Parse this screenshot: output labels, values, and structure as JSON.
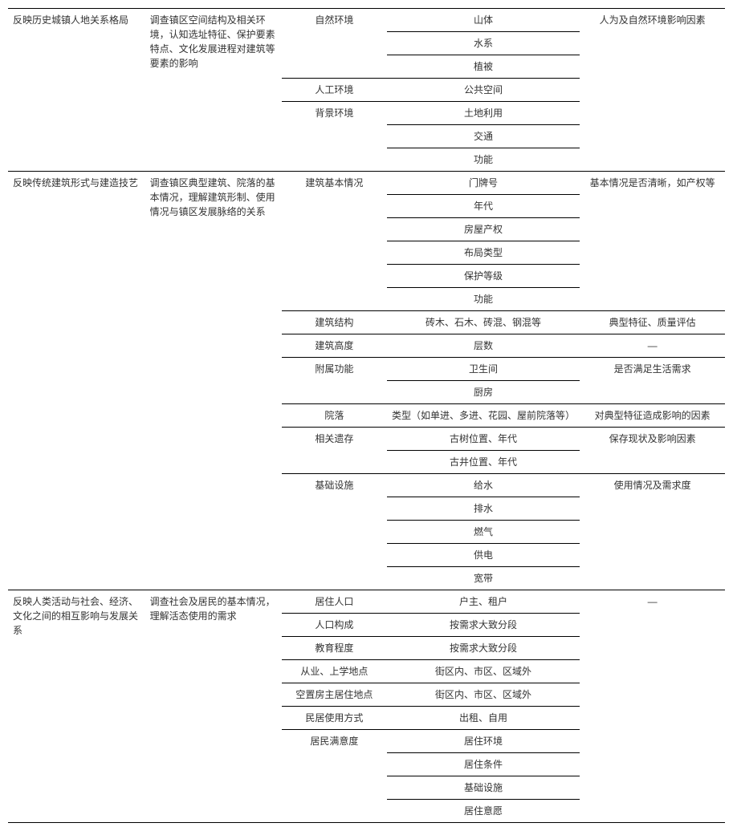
{
  "sections": [
    {
      "col1": "反映历史城镇人地关系格局",
      "col2": "调查镇区空间结构及相关环境，认知选址特征、保护要素特点、文化发展进程对建筑等要素的影响",
      "groups": [
        {
          "cat": "自然环境",
          "items": [
            "山体",
            "水系",
            "植被"
          ],
          "note": null
        },
        {
          "cat": "人工环境",
          "items": [
            "公共空间"
          ],
          "note": null
        },
        {
          "cat": "背景环境",
          "items": [
            "土地利用",
            "交通",
            "功能"
          ],
          "note": null
        }
      ],
      "sectionNote": "人为及自然环境影响因素"
    },
    {
      "col1": "反映传统建筑形式与建造技艺",
      "col2": "调查镇区典型建筑、院落的基本情况，理解建筑形制、使用情况与镇区发展脉络的关系",
      "groups": [
        {
          "cat": "建筑基本情况",
          "items": [
            "门牌号",
            "年代",
            "房屋产权",
            "布局类型",
            "保护等级",
            "功能"
          ],
          "note": "基本情况是否清晰，如产权等"
        },
        {
          "cat": "建筑结构",
          "items": [
            "砖木、石木、砖混、钢混等"
          ],
          "note": "典型特征、质量评估"
        },
        {
          "cat": "建筑高度",
          "items": [
            "层数"
          ],
          "note": "—"
        },
        {
          "cat": "附属功能",
          "items": [
            "卫生间",
            "厨房"
          ],
          "note": "是否满足生活需求"
        },
        {
          "cat": "院落",
          "items": [
            "类型（如单进、多进、花园、屋前院落等）"
          ],
          "note": "对典型特征造成影响的因素"
        },
        {
          "cat": "相关遗存",
          "items": [
            "古树位置、年代",
            "古井位置、年代"
          ],
          "note": "保存现状及影响因素"
        },
        {
          "cat": "基础设施",
          "items": [
            "给水",
            "排水",
            "燃气",
            "供电",
            "宽带"
          ],
          "note": "使用情况及需求度"
        }
      ]
    },
    {
      "col1": "反映人类活动与社会、经济、文化之间的相互影响与发展关系",
      "col2": "调查社会及居民的基本情况，理解活态使用的需求",
      "groups": [
        {
          "cat": "居住人口",
          "items": [
            "户主、租户"
          ],
          "note": null
        },
        {
          "cat": "人口构成",
          "items": [
            "按需求大致分段"
          ],
          "note": null
        },
        {
          "cat": "教育程度",
          "items": [
            "按需求大致分段"
          ],
          "note": null
        },
        {
          "cat": "从业、上学地点",
          "items": [
            "街区内、市区、区域外"
          ],
          "note": null
        },
        {
          "cat": "空置房主居住地点",
          "items": [
            "街区内、市区、区域外"
          ],
          "note": null
        },
        {
          "cat": "民居使用方式",
          "items": [
            "出租、自用"
          ],
          "note": null
        },
        {
          "cat": "居民满意度",
          "items": [
            "居住环境",
            "居住条件",
            "基础设施",
            "居住意愿"
          ],
          "note": null
        }
      ],
      "sectionNote": "—"
    }
  ]
}
